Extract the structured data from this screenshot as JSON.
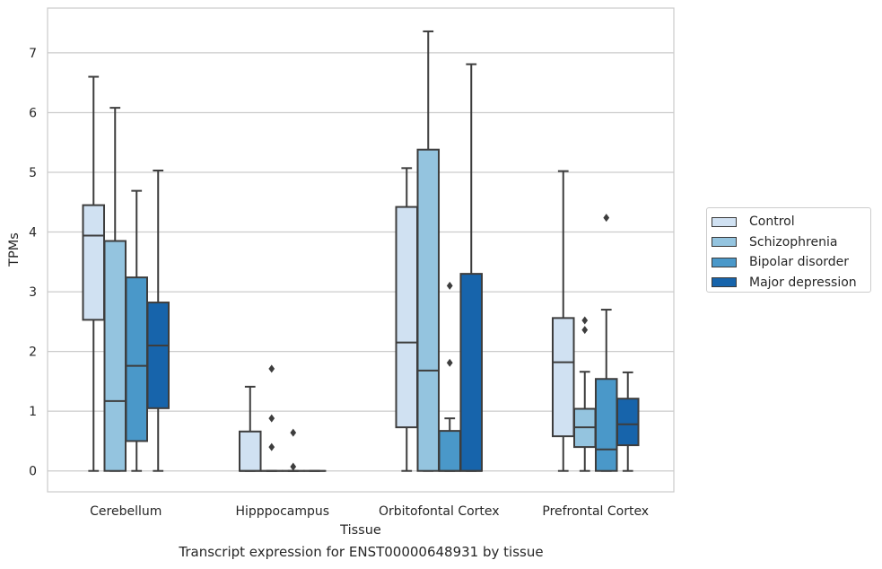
{
  "chart_data": {
    "type": "box",
    "xlabel": "Tissue",
    "ylabel": "TPMs",
    "caption": "Transcript expression for ENST00000648931 by tissue",
    "ylim": [
      -0.35,
      7.75
    ],
    "yticks": [
      0,
      1,
      2,
      3,
      4,
      5,
      6,
      7
    ],
    "grid": "horizontal",
    "legend_position": "right",
    "categories": [
      "Cerebellum",
      "Hipppocampus",
      "Orbitofontal Cortex",
      "Prefrontal Cortex"
    ],
    "series": [
      {
        "name": "Control",
        "color": "#d0e1f2",
        "boxes": [
          {
            "whislo": 0,
            "q1": 2.53,
            "med": 3.94,
            "q3": 4.45,
            "whishi": 6.6,
            "fliers": []
          },
          {
            "whislo": 0,
            "q1": 0,
            "med": 0,
            "q3": 0.66,
            "whishi": 1.41,
            "fliers": []
          },
          {
            "whislo": 0,
            "q1": 0.73,
            "med": 2.15,
            "q3": 4.42,
            "whishi": 5.07,
            "fliers": []
          },
          {
            "whislo": 0,
            "q1": 0.58,
            "med": 1.82,
            "q3": 2.56,
            "whishi": 5.02,
            "fliers": []
          }
        ]
      },
      {
        "name": "Schizophrenia",
        "color": "#94c4df",
        "boxes": [
          {
            "whislo": 0,
            "q1": 0,
            "med": 1.17,
            "q3": 3.85,
            "whishi": 6.08,
            "fliers": []
          },
          {
            "whislo": 0,
            "q1": 0,
            "med": 0,
            "q3": 0,
            "whishi": 0,
            "fliers": [
              1.71,
              0.88,
              0.4
            ]
          },
          {
            "whislo": 0,
            "q1": 0,
            "med": 1.68,
            "q3": 5.38,
            "whishi": 7.36,
            "fliers": []
          },
          {
            "whislo": 0,
            "q1": 0.4,
            "med": 0.73,
            "q3": 1.04,
            "whishi": 1.66,
            "fliers": [
              2.52,
              2.36
            ]
          }
        ]
      },
      {
        "name": "Bipolar disorder",
        "color": "#4a98c9",
        "boxes": [
          {
            "whislo": 0,
            "q1": 0.5,
            "med": 1.76,
            "q3": 3.24,
            "whishi": 4.69,
            "fliers": []
          },
          {
            "whislo": 0,
            "q1": 0,
            "med": 0,
            "q3": 0,
            "whishi": 0,
            "fliers": [
              0.64,
              0.07
            ]
          },
          {
            "whislo": 0,
            "q1": 0,
            "med": 0,
            "q3": 0.67,
            "whishi": 0.88,
            "fliers": [
              3.1,
              1.81
            ]
          },
          {
            "whislo": 0,
            "q1": 0,
            "med": 0.36,
            "q3": 1.54,
            "whishi": 2.7,
            "fliers": [
              4.24
            ]
          }
        ]
      },
      {
        "name": "Major depression",
        "color": "#1764ab",
        "boxes": [
          {
            "whislo": 0,
            "q1": 1.05,
            "med": 2.1,
            "q3": 2.82,
            "whishi": 5.03,
            "fliers": []
          },
          {
            "whislo": 0,
            "q1": 0,
            "med": 0,
            "q3": 0,
            "whishi": 0,
            "fliers": []
          },
          {
            "whislo": 0,
            "q1": 0,
            "med": 0,
            "q3": 3.3,
            "whishi": 6.81,
            "fliers": []
          },
          {
            "whislo": 0,
            "q1": 0.43,
            "med": 0.78,
            "q3": 1.21,
            "whishi": 1.65,
            "fliers": []
          }
        ]
      }
    ]
  }
}
